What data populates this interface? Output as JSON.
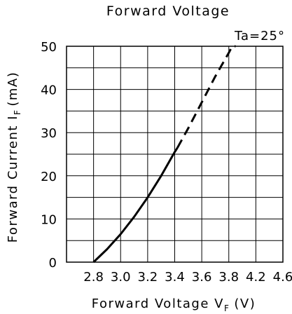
{
  "chart_data": {
    "type": "line",
    "title": "Forward Voltage",
    "annotation": "Ta=25°",
    "xlabel": {
      "main": "Forward Voltage  V",
      "sub": "F",
      "unit": "(V)"
    },
    "ylabel": {
      "main": "Forward Current  I",
      "sub": "F",
      "unit": "(mA)"
    },
    "xlim": [
      2.8,
      4.6
    ],
    "ylim": [
      0,
      50
    ],
    "x_ticks": [
      "2.8",
      "3.0",
      "3.2",
      "3.4",
      "3.6",
      "3.8",
      "4.2",
      "4.6"
    ],
    "x_tick_values": [
      2.8,
      3.0,
      3.2,
      3.4,
      3.6,
      3.8,
      4.2,
      4.6
    ],
    "y_ticks": [
      "0",
      "10",
      "20",
      "30",
      "40",
      "50"
    ],
    "y_tick_values": [
      0,
      10,
      20,
      30,
      40,
      50
    ],
    "grid": true,
    "series": [
      {
        "style": "solid",
        "x": [
          2.8,
          2.9,
          3.0,
          3.1,
          3.2,
          3.3,
          3.4,
          3.42
        ],
        "y": [
          0,
          3,
          6.5,
          10.5,
          15,
          20,
          25.5,
          26.5
        ]
      },
      {
        "style": "dashed",
        "x": [
          3.42,
          3.5,
          3.6,
          3.7,
          3.8,
          3.85,
          3.9
        ],
        "y": [
          26.5,
          31,
          37,
          43,
          48.5,
          50,
          50
        ]
      }
    ]
  }
}
